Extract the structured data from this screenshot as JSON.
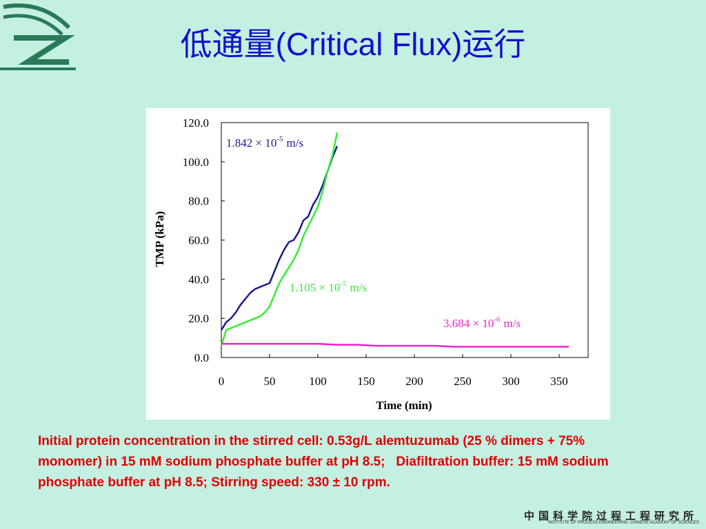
{
  "title": "低通量(Critical Flux)运行",
  "chart_data": {
    "type": "line",
    "xlabel": "Time (min)",
    "ylabel": "TMP (kPa)",
    "xlim": [
      0,
      380
    ],
    "ylim": [
      0,
      120
    ],
    "xticks": [
      0,
      50,
      100,
      150,
      200,
      250,
      300,
      350
    ],
    "yticks": [
      {
        "value": 0,
        "label": "0.0"
      },
      {
        "value": 20,
        "label": "20.0"
      },
      {
        "value": 40,
        "label": "40.0"
      },
      {
        "value": 60,
        "label": "60.0"
      },
      {
        "value": 80,
        "label": "80.0"
      },
      {
        "value": 100,
        "label": "100.0"
      },
      {
        "value": 120,
        "label": "120.0"
      }
    ],
    "series": [
      {
        "label_base": "1.842 × 10",
        "label_exp": "-5",
        "label_unit": "m/s",
        "color": "#1a1a8c",
        "x": [
          0,
          5,
          10,
          15,
          20,
          25,
          30,
          35,
          40,
          45,
          50,
          55,
          60,
          65,
          70,
          75,
          80,
          85,
          90,
          95,
          100,
          105,
          110,
          115,
          120
        ],
        "values": [
          14,
          18,
          20,
          23,
          27,
          30,
          33,
          35,
          36,
          37,
          38,
          44,
          50,
          55,
          59,
          60,
          64,
          70,
          72,
          78,
          82,
          88,
          95,
          102,
          108
        ]
      },
      {
        "label_base": "1.105 × 10",
        "label_exp": "-5",
        "label_unit": "m/s",
        "color": "#33ee33",
        "x": [
          0,
          5,
          10,
          15,
          20,
          25,
          30,
          35,
          40,
          45,
          50,
          55,
          60,
          65,
          70,
          75,
          80,
          85,
          90,
          95,
          100,
          105,
          110,
          115,
          120
        ],
        "values": [
          6,
          14,
          15,
          16,
          17,
          18,
          19,
          20,
          21,
          23,
          26,
          32,
          38,
          42,
          46,
          50,
          55,
          62,
          67,
          72,
          77,
          85,
          95,
          103,
          115
        ]
      },
      {
        "label_base": "3.684 × 10",
        "label_exp": "-6",
        "label_unit": "m/s",
        "color": "#ee22cc",
        "x": [
          0,
          20,
          40,
          60,
          80,
          100,
          120,
          140,
          160,
          180,
          200,
          220,
          240,
          260,
          280,
          300,
          320,
          340,
          360
        ],
        "values": [
          7,
          7,
          7,
          7,
          7,
          7,
          6.5,
          6.5,
          6,
          6,
          6,
          6,
          5.5,
          5.5,
          5.5,
          5.5,
          5.5,
          5.5,
          5.5
        ]
      }
    ]
  },
  "caption": [
    "Initial protein concentration in the stirred cell: 0.53g/L alemtuzumab (25 % dimers + 75%",
    "monomer) in 15 mM sodium phosphate buffer at pH 8.5;   Diafiltration buffer: 15 mM sodium",
    "phosphate buffer at pH 8.5; Stirring speed: 330 ± 10 rpm."
  ],
  "footer": {
    "name": "中国科学院过程工程研究所",
    "english": "INSTITUTE OF PROCESS ENGINEERING, CHINESE ACADEMY OF SCIENCES"
  }
}
